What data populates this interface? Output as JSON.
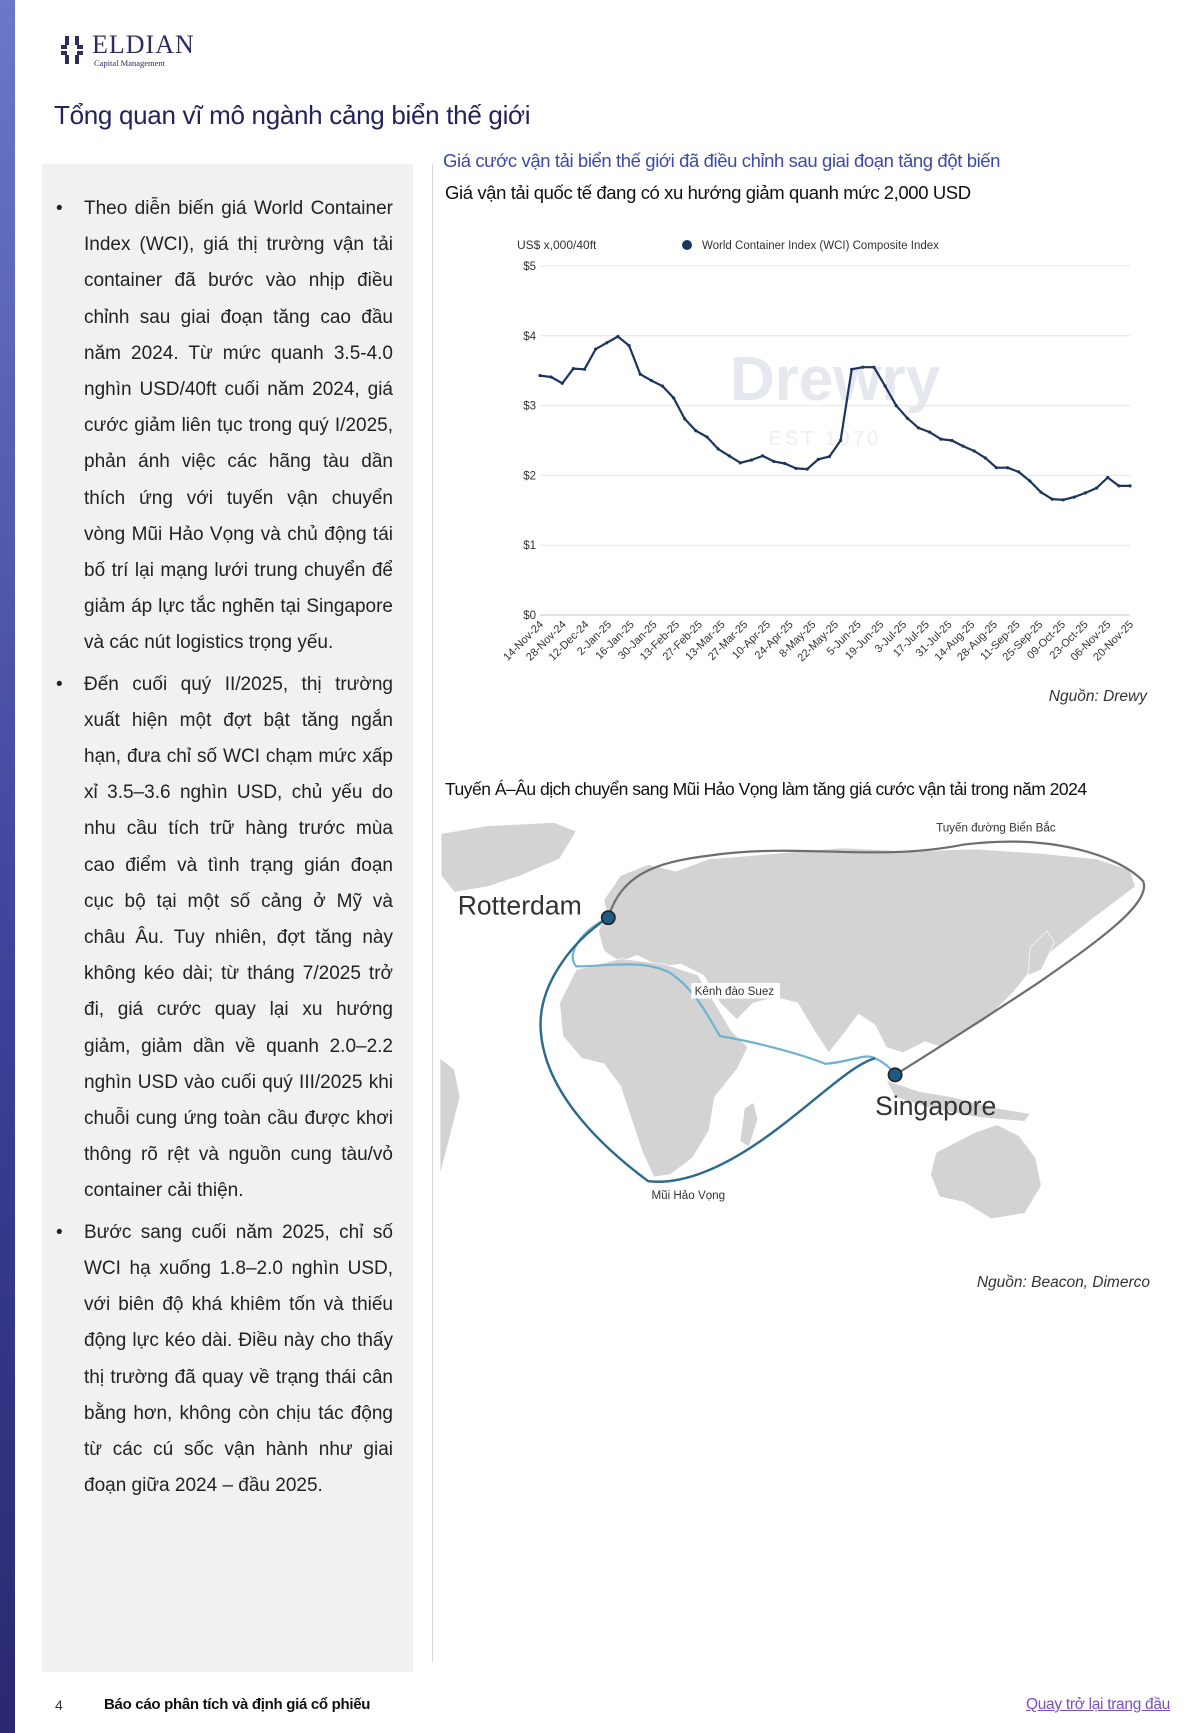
{
  "logo": {
    "name": "ELDIAN",
    "subtitle": "Capital Management"
  },
  "page_title": "Tổng quan vĩ mô ngành cảng biển thế giới",
  "bullets": [
    "Theo diễn biến giá World Container Index (WCI), giá thị trường vận tải container đã bước vào nhịp điều chỉnh sau giai đoạn tăng cao đầu năm 2024. Từ mức quanh 3.5-4.0 nghìn USD/40ft cuối năm 2024, giá cước giảm liên tục trong quý I/2025, phản ánh việc các hãng tàu dần thích ứng với tuyến vận chuyển vòng Mũi Hảo Vọng và chủ động tái bố trí lại mạng lưới trung chuyển để giảm áp lực tắc nghẽn tại Singapore và các nút logistics trọng yếu.",
    "Đến cuối quý II/2025, thị trường xuất hiện một đợt bật tăng ngắn hạn, đưa chỉ số WCI chạm mức xấp xỉ 3.5–3.6 nghìn USD, chủ yếu do nhu cầu tích trữ hàng trước mùa cao điểm và tình trạng gián đoạn cục bộ tại một số cảng ở Mỹ và châu Âu. Tuy nhiên, đợt tăng này không kéo dài; từ tháng 7/2025 trở đi, giá cước quay lại xu hướng giảm, giảm dần về quanh 2.0–2.2 nghìn USD vào cuối quý III/2025 khi chuỗi cung ứng toàn cầu được khơi thông rõ rệt và nguồn cung tàu/vỏ container cải thiện.",
    "Bước sang cuối năm 2025, chỉ số WCI hạ xuống 1.8–2.0 nghìn USD, với biên độ khá khiêm tốn và thiếu động lực kéo dài. Điều này cho thấy thị trường đã quay về trạng thái cân bằng hơn, không còn chịu tác động từ các cú sốc vận hành như giai đoạn giữa 2024 – đầu 2025."
  ],
  "section1": {
    "heading": "Giá cước vận tải biển thế giới đã điều chỉnh sau giai đoạn tăng đột biến",
    "subheading": "Giá vận tải quốc tế đang có xu hướng giảm quanh mức 2,000 USD",
    "source": "Nguồn: Drewy"
  },
  "chart_data": {
    "type": "line",
    "title": "Giá vận tải quốc tế đang có xu hướng giảm quanh mức 2,000 USD",
    "ylabel": "US$ x,000/40ft",
    "xlabel": "",
    "ylim": [
      0,
      5
    ],
    "yticks": [
      "$0",
      "$1",
      "$2",
      "$3",
      "$4",
      "$5"
    ],
    "grid": true,
    "legend_position": "top",
    "watermark": "Drewry EST 1970",
    "xtick_labels": [
      "14-Nov-24",
      "28-Nov-24",
      "12-Dec-24",
      "2-Jan-25",
      "16-Jan-25",
      "30-Jan-25",
      "13-Feb-25",
      "27-Feb-25",
      "13-Mar-25",
      "27-Mar-25",
      "10-Apr-25",
      "24-Apr-25",
      "8-May-25",
      "22-May-25",
      "5-Jun-25",
      "19-Jun-25",
      "3-Jul-25",
      "17-Jul-25",
      "31-Jul-25",
      "14-Aug-25",
      "28-Aug-25",
      "11-Sep-25",
      "25-Sep-25",
      "09-Oct-25",
      "23-Oct-25",
      "06-Nov-25",
      "20-Nov-25"
    ],
    "series": [
      {
        "name": "World Container Index (WCI) Composite Index",
        "color": "#1b355f",
        "values": [
          3.43,
          3.41,
          3.32,
          3.53,
          3.52,
          3.81,
          3.9,
          3.99,
          3.86,
          3.45,
          3.36,
          3.28,
          3.11,
          2.81,
          2.64,
          2.55,
          2.38,
          2.28,
          2.18,
          2.22,
          2.28,
          2.2,
          2.17,
          2.1,
          2.09,
          2.23,
          2.27,
          2.5,
          3.52,
          3.55,
          3.55,
          3.28,
          3.0,
          2.82,
          2.68,
          2.62,
          2.52,
          2.5,
          2.42,
          2.35,
          2.25,
          2.11,
          2.11,
          2.05,
          1.92,
          1.76,
          1.66,
          1.65,
          1.69,
          1.75,
          1.82,
          1.97,
          1.85,
          1.85
        ]
      }
    ]
  },
  "section2": {
    "heading": "Tuyến Á–Âu dịch chuyển sang Mũi Hảo Vọng làm tăng giá cước vận tải trong năm 2024",
    "labels": {
      "rotterdam": "Rotterdam",
      "singapore": "Singapore",
      "suez": "Kênh đào Suez",
      "cape": "Mũi Hảo Vọng",
      "north_sea": "Tuyến đường Biển Bắc"
    },
    "colors": {
      "cape_route": "#2c6b8c",
      "suez_route": "#6fb3d0",
      "north_route": "#6e6e6e"
    },
    "source": "Nguồn: Beacon, Dimerco"
  },
  "footer": {
    "page_number": "4",
    "title": "Báo cáo phân tích và định giá cổ phiếu",
    "back_link": "Quay trở lại trang đầu"
  }
}
